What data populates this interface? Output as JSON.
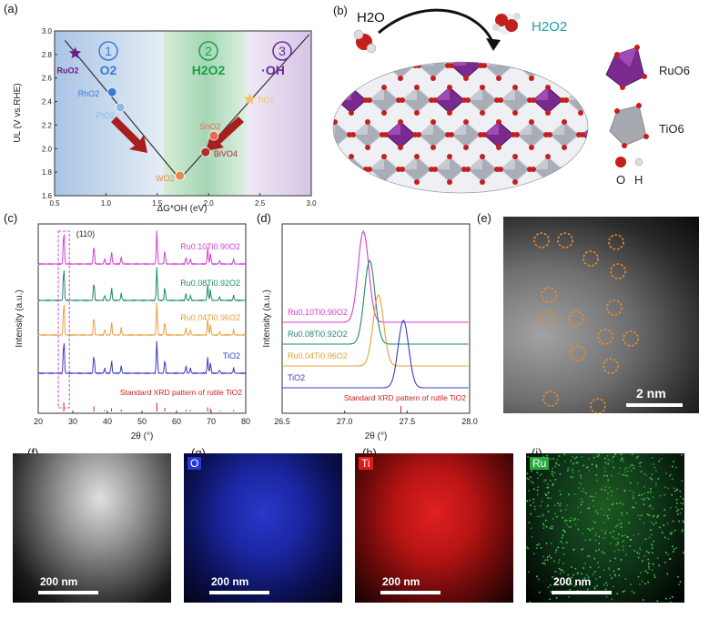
{
  "panel_labels": {
    "a": "(a)",
    "b": "(b)",
    "c": "(c)",
    "d": "(d)",
    "e": "(e)",
    "f": "(f)",
    "g": "(g)",
    "h": "(h)",
    "i": "(i)"
  },
  "panel_a": {
    "zone_numbers": [
      "1",
      "2",
      "3"
    ],
    "zone_products": [
      "O2",
      "H2O2",
      "·OH"
    ],
    "points": [
      {
        "name": "RuO2",
        "dg": 0.7,
        "ul": 2.81,
        "color": "#6a1b8a"
      },
      {
        "name": "RhO2",
        "dg": 1.06,
        "ul": 2.48,
        "color": "#3b7bd9"
      },
      {
        "name": "PtO2",
        "dg": 1.14,
        "ul": 2.35,
        "color": "#8fb8e8"
      },
      {
        "name": "WO2",
        "dg": 1.72,
        "ul": 1.77,
        "color": "#e8894a"
      },
      {
        "name": "SnO2",
        "dg": 2.05,
        "ul": 2.11,
        "color": "#e66a5a"
      },
      {
        "name": "BiVO4",
        "dg": 1.97,
        "ul": 1.97,
        "color": "#b52a2a"
      },
      {
        "name": "TiO2",
        "dg": 2.4,
        "ul": 2.42,
        "color": "#f2c26b"
      }
    ],
    "xlabel": "ΔG*OH (eV)",
    "ylabel": "UL (V vs.RHE)",
    "xticks": [
      "0.5",
      "1.0",
      "1.5",
      "2.0",
      "2.5",
      "3.0"
    ],
    "yticks": [
      "1.6",
      "1.8",
      "2.0",
      "2.2",
      "2.4",
      "2.6",
      "2.8",
      "3.0"
    ]
  },
  "panel_b": {
    "reactant": "H2O",
    "product": "H2O2",
    "legend_ru": "RuO6",
    "legend_ti": "TiO6",
    "legend_o": "O",
    "legend_h": "H"
  },
  "chart_data": [
    {
      "type": "line",
      "panel": "c",
      "xlabel": "2θ (°)",
      "ylabel": "Intensity (a.u.)",
      "xlim": [
        20,
        80
      ],
      "xticks": [
        20,
        30,
        40,
        50,
        60,
        70,
        80
      ],
      "annotation": "(110)",
      "series": [
        {
          "name": "Ru0.10Ti0.90O2",
          "color": "#d43fd4"
        },
        {
          "name": "Ru0.08Ti0.92O2",
          "color": "#1f8a6a"
        },
        {
          "name": "Ru0.04Ti0.96O2",
          "color": "#e8a040"
        },
        {
          "name": "TiO2",
          "color": "#3b3bc8"
        }
      ],
      "peaks": [
        27.4,
        36.1,
        39.2,
        41.2,
        44.0,
        54.3,
        56.6,
        62.7,
        64.0,
        69.0,
        69.8,
        72.4,
        76.5
      ],
      "reference_label": "Standard XRD pattern of rutile TiO2"
    },
    {
      "type": "line",
      "panel": "d",
      "xlabel": "2θ (°)",
      "ylabel": "Intensity (a.u.)",
      "xlim": [
        26.5,
        28.0
      ],
      "xticks": [
        "26.5",
        "27.0",
        "27.5",
        "28.0"
      ],
      "series": [
        {
          "name": "Ru0.10Ti0.90O2",
          "color": "#d43fd4",
          "peak": 27.15
        },
        {
          "name": "Ru0.08Ti0.92O2",
          "color": "#1f8a6a",
          "peak": 27.2
        },
        {
          "name": "Ru0.04Ti0.96O2",
          "color": "#e8a040",
          "peak": 27.27
        },
        {
          "name": "TiO2",
          "color": "#3b3bc8",
          "peak": 27.47
        }
      ],
      "reference_label": "Standard XRD pattern of rutile TiO2"
    }
  ],
  "panel_e": {
    "scale": "2 nm"
  },
  "panel_f": {
    "scale": "200 nm"
  },
  "panel_g": {
    "tag": "O",
    "scale": "200 nm",
    "tag_color": "#2a3ad0"
  },
  "panel_h": {
    "tag": "Ti",
    "scale": "200 nm",
    "tag_color": "#e01a1a"
  },
  "panel_i": {
    "tag": "Ru",
    "scale": "200 nm",
    "tag_color": "#2aa83a"
  }
}
